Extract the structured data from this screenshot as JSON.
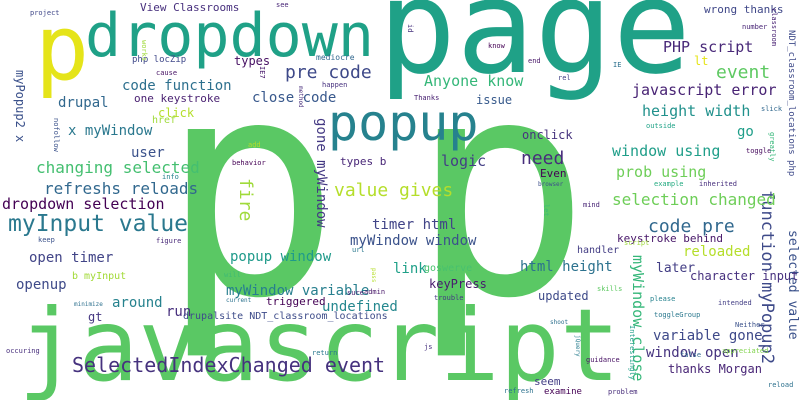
{
  "words": [
    {
      "text": "p",
      "color": "#5ac864"
    },
    {
      "text": "p",
      "color": "#5ac864"
    },
    {
      "text": "page",
      "color": "#1fa187"
    },
    {
      "text": "javascript",
      "color": "#5ac864"
    },
    {
      "text": "dropdown",
      "color": "#1fa187"
    },
    {
      "text": "p",
      "color": "#e5e419"
    },
    {
      "text": "popup",
      "color": "#26828e"
    },
    {
      "text": "SelectedIndexChanged event",
      "color": "#46327e"
    },
    {
      "text": "myInput value",
      "color": "#2a788e"
    },
    {
      "text": "value gives",
      "color": "#b5de2b"
    },
    {
      "text": "function myPopup2",
      "color": "#3e4a89"
    },
    {
      "text": "event",
      "color": "#5ec962"
    },
    {
      "text": "code pre",
      "color": "#31688e"
    },
    {
      "text": "myWindow close",
      "color": "#35b779"
    },
    {
      "text": "selection changed",
      "color": "#6ece58"
    },
    {
      "text": "fire",
      "color": "#9fda3a"
    },
    {
      "text": "pre code",
      "color": "#3e4989"
    },
    {
      "text": "changing selected",
      "color": "#44bf70"
    },
    {
      "text": "need",
      "color": "#472d7b"
    },
    {
      "text": "refreshs reloads",
      "color": "#31688e"
    },
    {
      "text": "dropdown selection",
      "color": "#440154"
    },
    {
      "text": "PHP script",
      "color": "#482878"
    },
    {
      "text": "Anyone know",
      "color": "#35b779"
    },
    {
      "text": "javascript error",
      "color": "#482374"
    },
    {
      "text": "height width",
      "color": "#21918c"
    },
    {
      "text": "window using",
      "color": "#1f9e89"
    },
    {
      "text": "prob using",
      "color": "#6ece58"
    },
    {
      "text": "logic",
      "color": "#433e85"
    },
    {
      "text": "gone myWindow",
      "color": "#443983"
    },
    {
      "text": "myWindow window",
      "color": "#3b528b"
    },
    {
      "text": "timer html",
      "color": "#414487"
    },
    {
      "text": "popup window",
      "color": "#1f9a8a"
    },
    {
      "text": "myWindow variable",
      "color": "#277f8e"
    },
    {
      "text": "html height",
      "color": "#2c728e"
    },
    {
      "text": "variable gone",
      "color": "#3e4989"
    },
    {
      "text": "window open",
      "color": "#46337f"
    },
    {
      "text": "x myWindow",
      "color": "#2a788e"
    },
    {
      "text": "drupal",
      "color": "#31688e"
    },
    {
      "text": "code function",
      "color": "#2d708e"
    },
    {
      "text": "user",
      "color": "#3b528b"
    },
    {
      "text": "close code",
      "color": "#38588c"
    },
    {
      "text": "open timer",
      "color": "#414487"
    },
    {
      "text": "openup",
      "color": "#3e4a89"
    },
    {
      "text": "run",
      "color": "#472f7d"
    },
    {
      "text": "around",
      "color": "#26828e"
    },
    {
      "text": "undefined",
      "color": "#24878e"
    },
    {
      "text": "link",
      "color": "#1fa088"
    },
    {
      "text": "reloaded",
      "color": "#b5de2b"
    },
    {
      "text": "selected value",
      "color": "#3b528b"
    },
    {
      "text": "go",
      "color": "#1f9e89"
    },
    {
      "text": "later",
      "color": "#433e85"
    },
    {
      "text": "character input",
      "color": "#46307e"
    },
    {
      "text": "keyPress",
      "color": "#481b6d"
    },
    {
      "text": "thanks Morgan",
      "color": "#482576"
    },
    {
      "text": "updated",
      "color": "#3e4a89"
    },
    {
      "text": "onclick",
      "color": "#46337e"
    },
    {
      "text": "gt",
      "color": "#453781"
    },
    {
      "text": "myPopup2 x",
      "color": "#3b518b"
    },
    {
      "text": "issue",
      "color": "#375a8c"
    },
    {
      "text": "click",
      "color": "#b5de2b"
    },
    {
      "text": "lt",
      "color": "#e5e419"
    },
    {
      "text": "types",
      "color": "#471063"
    },
    {
      "text": "one keystroke",
      "color": "#481f70"
    },
    {
      "text": "types b",
      "color": "#482677"
    },
    {
      "text": "Even",
      "color": "#440154"
    },
    {
      "text": "keystroke behind",
      "color": "#481769"
    },
    {
      "text": "triggered",
      "color": "#440154"
    },
    {
      "text": "drupalsite NDT_classroom_locations",
      "color": "#3e4c8a"
    },
    {
      "text": "handler",
      "color": "#433d84"
    },
    {
      "text": "goswerve",
      "color": "#48c16e"
    },
    {
      "text": "b myInput",
      "color": "#a2da37"
    },
    {
      "text": "wrong thanks",
      "color": "#3f4788"
    },
    {
      "text": "View Classrooms",
      "color": "#472f7d"
    },
    {
      "text": "php locZip",
      "color": "#3f4889"
    },
    {
      "text": "mediocre",
      "color": "#31678e"
    },
    {
      "text": "href",
      "color": "#9fda3a"
    },
    {
      "text": "NDT_classroom_locations php",
      "color": "#3e4a89"
    },
    {
      "text": "classroom",
      "color": "#482173"
    },
    {
      "text": "project",
      "color": "#3f4788"
    },
    {
      "text": "see",
      "color": "#482677"
    },
    {
      "text": "know",
      "color": "#440154"
    },
    {
      "text": "end",
      "color": "#481769"
    },
    {
      "text": "rel",
      "color": "#424186"
    },
    {
      "text": "IE",
      "color": "#2d718e"
    },
    {
      "text": "Thanks",
      "color": "#482071"
    },
    {
      "text": "cause",
      "color": "#471365"
    },
    {
      "text": "happen",
      "color": "#46307e"
    },
    {
      "text": "id",
      "color": "#46327e"
    },
    {
      "text": "works",
      "color": "#a0da39"
    },
    {
      "text": "IE7",
      "color": "#481a6c"
    },
    {
      "text": "number",
      "color": "#482576"
    },
    {
      "text": "slick",
      "color": "#31688e"
    },
    {
      "text": "toggle",
      "color": "#460a5d"
    },
    {
      "text": "inherited",
      "color": "#472f7d"
    },
    {
      "text": "example",
      "color": "#25ab82"
    },
    {
      "text": "outside",
      "color": "#1fa287"
    },
    {
      "text": "greatly",
      "color": "#35b779"
    },
    {
      "text": "behavior",
      "color": "#440154"
    },
    {
      "text": "info",
      "color": "#26828e"
    },
    {
      "text": "add",
      "color": "#b2dd2d"
    },
    {
      "text": "mind",
      "color": "#482475"
    },
    {
      "text": "browser",
      "color": "#3d4e8a"
    },
    {
      "text": "let",
      "color": "#3fbc73"
    },
    {
      "text": "keep",
      "color": "#3b528b"
    },
    {
      "text": "figure",
      "color": "#482878"
    },
    {
      "text": "url",
      "color": "#2a788e"
    },
    {
      "text": "will",
      "color": "#3fbc73"
    },
    {
      "text": "sure",
      "color": "#482071"
    },
    {
      "text": "minimize",
      "color": "#2d708e"
    },
    {
      "text": "current",
      "color": "#2c728e"
    },
    {
      "text": "admin",
      "color": "#481769"
    },
    {
      "text": "trouble",
      "color": "#443983"
    },
    {
      "text": "pass",
      "color": "#b5de2b"
    },
    {
      "text": "script",
      "color": "#9fda3a"
    },
    {
      "text": "skills",
      "color": "#5ec962"
    },
    {
      "text": "please",
      "color": "#26828e"
    },
    {
      "text": "intended",
      "color": "#433e85"
    },
    {
      "text": "toggleGroup",
      "color": "#2a788e"
    },
    {
      "text": "Neither",
      "color": "#3b528b"
    },
    {
      "text": "shoot",
      "color": "#2d708e"
    },
    {
      "text": "jQuery",
      "color": "#287d8e"
    },
    {
      "text": "Interestingly",
      "color": "#1f9e89"
    },
    {
      "text": "occuring",
      "color": "#472e7c"
    },
    {
      "text": "return",
      "color": "#2a788e"
    },
    {
      "text": "js",
      "color": "#46307e"
    },
    {
      "text": "false",
      "color": "#31688e"
    },
    {
      "text": "appreciated",
      "color": "#81d34d"
    },
    {
      "text": "guidance",
      "color": "#471063"
    },
    {
      "text": "refresh",
      "color": "#2c728e"
    },
    {
      "text": "examine",
      "color": "#440154"
    },
    {
      "text": "problem",
      "color": "#472c7a"
    },
    {
      "text": "nofollow",
      "color": "#3b528b"
    },
    {
      "text": "method",
      "color": "#472d7b"
    },
    {
      "text": "seem",
      "color": "#433e85"
    },
    {
      "text": "reload",
      "color": "#2d718e"
    }
  ]
}
